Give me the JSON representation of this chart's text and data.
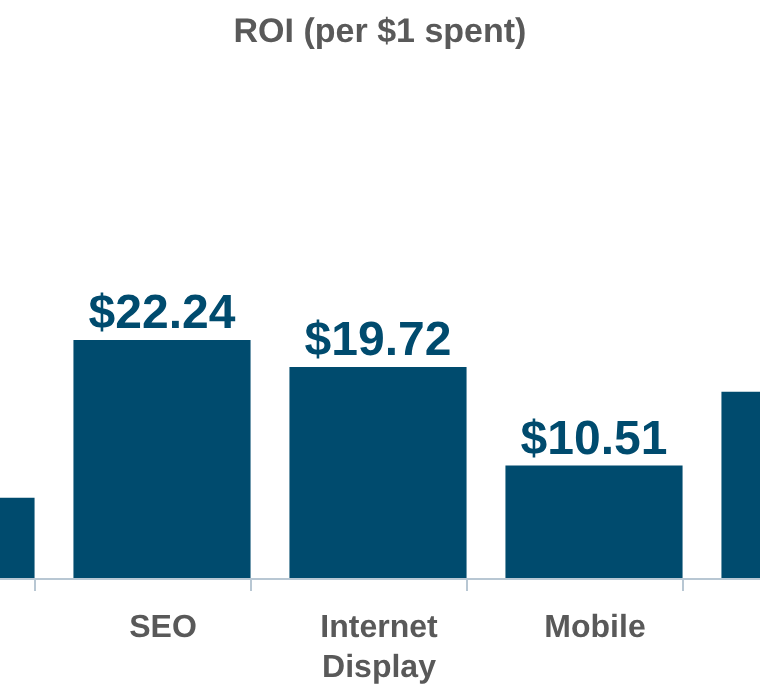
{
  "chart_data": {
    "type": "bar",
    "title": "ROI (per $1 spent)",
    "categories": [
      null,
      "SEO",
      "Internet Display",
      "Mobile",
      null
    ],
    "values": [
      7.5,
      22.24,
      19.72,
      10.51,
      17.4
    ],
    "value_labels": [
      null,
      "$22.24",
      "$19.72",
      "$10.51",
      null
    ],
    "color": "#004b6e",
    "grid": false
  }
}
